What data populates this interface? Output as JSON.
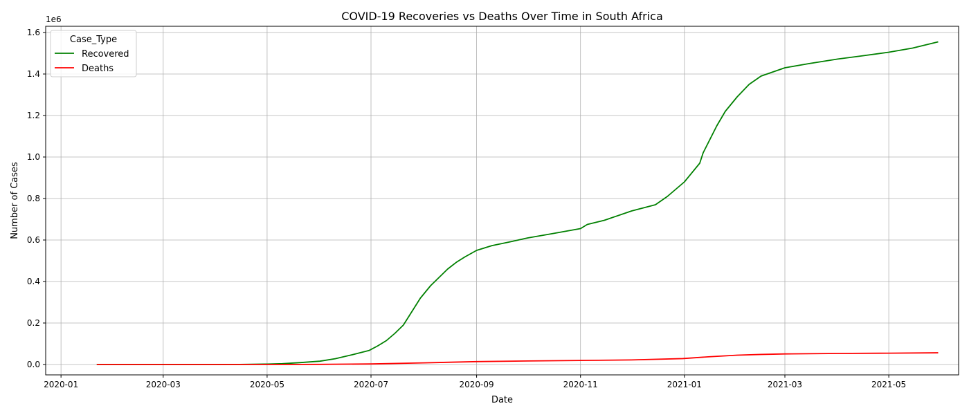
{
  "chart_data": {
    "type": "line",
    "title": "COVID-19 Recoveries vs Deaths Over Time in South Africa",
    "xlabel": "Date",
    "ylabel": "Number of Cases",
    "y_offset_label": "1e6",
    "y_scale_factor": 1000000,
    "xlim": [
      "2019-12-23",
      "2021-06-11"
    ],
    "ylim": [
      -50000,
      1630000
    ],
    "grid": true,
    "legend": {
      "title": "Case_Type",
      "placement": "top-left"
    },
    "x_ticks": [
      "2020-01",
      "2020-03",
      "2020-05",
      "2020-07",
      "2020-09",
      "2020-11",
      "2021-01",
      "2021-03",
      "2021-05"
    ],
    "y_ticks": [
      "0.0",
      "0.2",
      "0.4",
      "0.6",
      "0.8",
      "1.0",
      "1.2",
      "1.4",
      "1.6"
    ],
    "series": [
      {
        "name": "Recovered",
        "color": "#008000",
        "points": [
          [
            "2020-01-22",
            0
          ],
          [
            "2020-03-01",
            0
          ],
          [
            "2020-04-01",
            0
          ],
          [
            "2020-04-15",
            500
          ],
          [
            "2020-05-01",
            2000
          ],
          [
            "2020-05-10",
            4000
          ],
          [
            "2020-05-20",
            9000
          ],
          [
            "2020-06-01",
            16000
          ],
          [
            "2020-06-10",
            28000
          ],
          [
            "2020-06-20",
            47000
          ],
          [
            "2020-06-30",
            68000
          ],
          [
            "2020-07-05",
            90000
          ],
          [
            "2020-07-10",
            115000
          ],
          [
            "2020-07-15",
            150000
          ],
          [
            "2020-07-20",
            190000
          ],
          [
            "2020-07-25",
            255000
          ],
          [
            "2020-07-30",
            320000
          ],
          [
            "2020-08-05",
            380000
          ],
          [
            "2020-08-10",
            420000
          ],
          [
            "2020-08-15",
            460000
          ],
          [
            "2020-08-20",
            492000
          ],
          [
            "2020-08-25",
            518000
          ],
          [
            "2020-09-01",
            550000
          ],
          [
            "2020-09-10",
            573000
          ],
          [
            "2020-09-20",
            590000
          ],
          [
            "2020-10-01",
            610000
          ],
          [
            "2020-10-15",
            630000
          ],
          [
            "2020-11-01",
            655000
          ],
          [
            "2020-11-05",
            675000
          ],
          [
            "2020-11-15",
            695000
          ],
          [
            "2020-12-01",
            740000
          ],
          [
            "2020-12-15",
            770000
          ],
          [
            "2020-12-22",
            810000
          ],
          [
            "2021-01-01",
            880000
          ],
          [
            "2021-01-10",
            970000
          ],
          [
            "2021-01-12",
            1020000
          ],
          [
            "2021-01-20",
            1150000
          ],
          [
            "2021-01-25",
            1220000
          ],
          [
            "2021-02-01",
            1290000
          ],
          [
            "2021-02-08",
            1350000
          ],
          [
            "2021-02-15",
            1390000
          ],
          [
            "2021-03-01",
            1430000
          ],
          [
            "2021-03-15",
            1450000
          ],
          [
            "2021-04-01",
            1472000
          ],
          [
            "2021-04-15",
            1487000
          ],
          [
            "2021-05-01",
            1505000
          ],
          [
            "2021-05-15",
            1525000
          ],
          [
            "2021-05-30",
            1555000
          ]
        ]
      },
      {
        "name": "Deaths",
        "color": "#ff0000",
        "points": [
          [
            "2020-01-22",
            0
          ],
          [
            "2020-03-27",
            0
          ],
          [
            "2020-05-01",
            100
          ],
          [
            "2020-06-01",
            700
          ],
          [
            "2020-07-01",
            2700
          ],
          [
            "2020-08-01",
            8000
          ],
          [
            "2020-09-01",
            14000
          ],
          [
            "2020-10-01",
            17000
          ],
          [
            "2020-11-01",
            19500
          ],
          [
            "2020-12-01",
            22000
          ],
          [
            "2020-12-31",
            28500
          ],
          [
            "2021-01-15",
            37000
          ],
          [
            "2021-02-01",
            45000
          ],
          [
            "2021-02-15",
            48500
          ],
          [
            "2021-03-01",
            51000
          ],
          [
            "2021-04-01",
            53300
          ],
          [
            "2021-05-01",
            54700
          ],
          [
            "2021-05-30",
            56500
          ]
        ]
      }
    ]
  }
}
